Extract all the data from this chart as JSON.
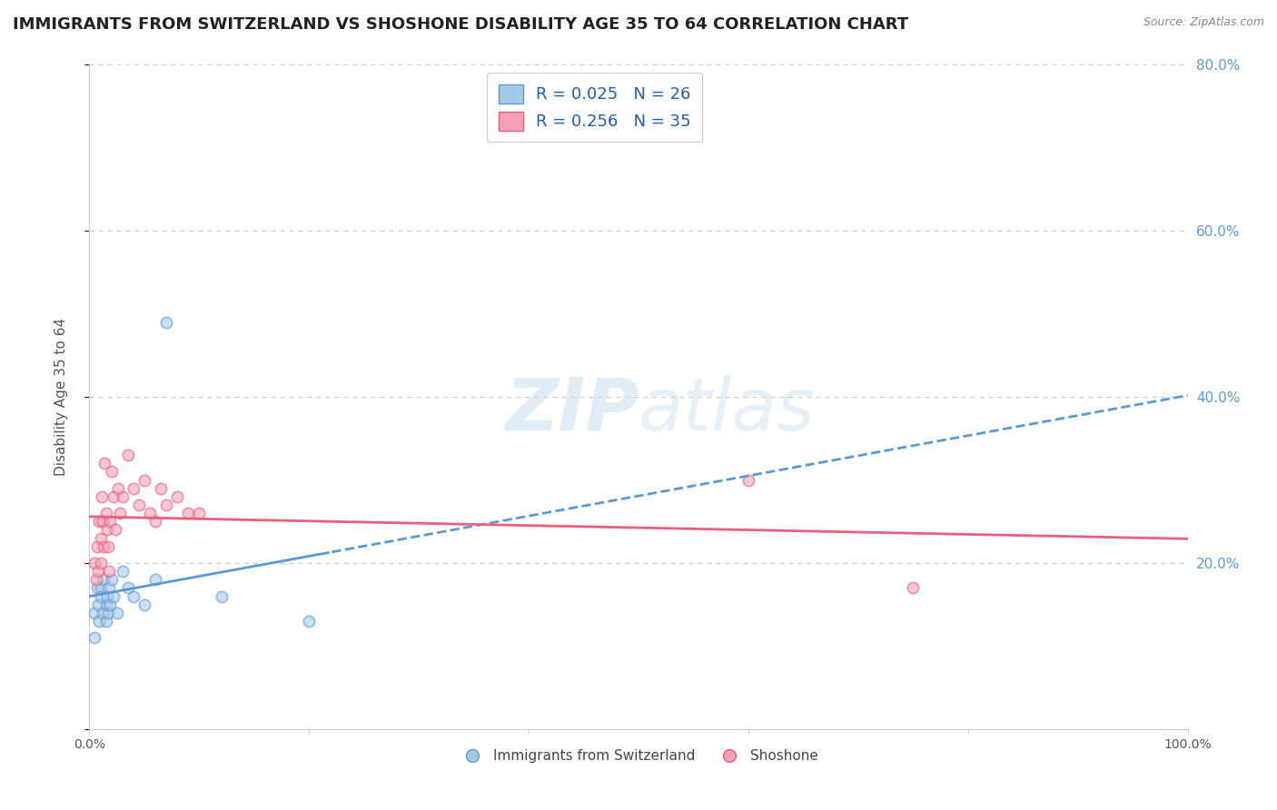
{
  "title": "IMMIGRANTS FROM SWITZERLAND VS SHOSHONE DISABILITY AGE 35 TO 64 CORRELATION CHART",
  "source_text": "Source: ZipAtlas.com",
  "ylabel": "Disability Age 35 to 64",
  "r_swiss": 0.025,
  "n_swiss": 26,
  "r_shoshone": 0.256,
  "n_shoshone": 35,
  "swiss_color": "#a8c8e8",
  "shoshone_color": "#f4a0b8",
  "swiss_line_color": "#5b9bd5",
  "shoshone_line_color": "#e8607a",
  "legend1_label": "Immigrants from Switzerland",
  "legend2_label": "Shoshone",
  "swiss_x": [
    0.005,
    0.005,
    0.007,
    0.008,
    0.009,
    0.01,
    0.01,
    0.012,
    0.013,
    0.015,
    0.015,
    0.016,
    0.017,
    0.018,
    0.019,
    0.02,
    0.022,
    0.025,
    0.03,
    0.035,
    0.04,
    0.05,
    0.06,
    0.07,
    0.12,
    0.2
  ],
  "swiss_y": [
    0.14,
    0.11,
    0.17,
    0.15,
    0.13,
    0.17,
    0.16,
    0.14,
    0.18,
    0.15,
    0.13,
    0.16,
    0.14,
    0.17,
    0.15,
    0.18,
    0.16,
    0.14,
    0.19,
    0.17,
    0.16,
    0.15,
    0.18,
    0.49,
    0.16,
    0.13
  ],
  "shoshone_x": [
    0.005,
    0.006,
    0.007,
    0.008,
    0.009,
    0.01,
    0.01,
    0.011,
    0.012,
    0.013,
    0.014,
    0.015,
    0.016,
    0.017,
    0.018,
    0.019,
    0.02,
    0.022,
    0.024,
    0.026,
    0.028,
    0.03,
    0.035,
    0.04,
    0.045,
    0.05,
    0.055,
    0.06,
    0.065,
    0.07,
    0.08,
    0.09,
    0.1,
    0.6,
    0.75
  ],
  "shoshone_y": [
    0.2,
    0.18,
    0.22,
    0.19,
    0.25,
    0.23,
    0.2,
    0.28,
    0.25,
    0.22,
    0.32,
    0.26,
    0.24,
    0.22,
    0.19,
    0.25,
    0.31,
    0.28,
    0.24,
    0.29,
    0.26,
    0.28,
    0.33,
    0.29,
    0.27,
    0.3,
    0.26,
    0.25,
    0.29,
    0.27,
    0.28,
    0.26,
    0.26,
    0.3,
    0.17
  ],
  "xlim": [
    0.0,
    1.0
  ],
  "ylim": [
    0.0,
    0.8
  ],
  "background_color": "#ffffff",
  "title_fontsize": 13,
  "axis_label_fontsize": 11,
  "tick_fontsize": 10,
  "dot_size": 80,
  "dot_alpha": 0.6,
  "right_yticks": [
    0.2,
    0.4,
    0.6,
    0.8
  ],
  "right_yticklabels": [
    "20.0%",
    "40.0%",
    "60.0%",
    "80.0%"
  ],
  "xtick_positions": [
    0.0,
    0.2,
    0.4,
    0.6,
    0.8,
    1.0
  ],
  "xtick_labels": [
    "0.0%",
    "",
    "",
    "",
    "",
    "100.0%"
  ]
}
